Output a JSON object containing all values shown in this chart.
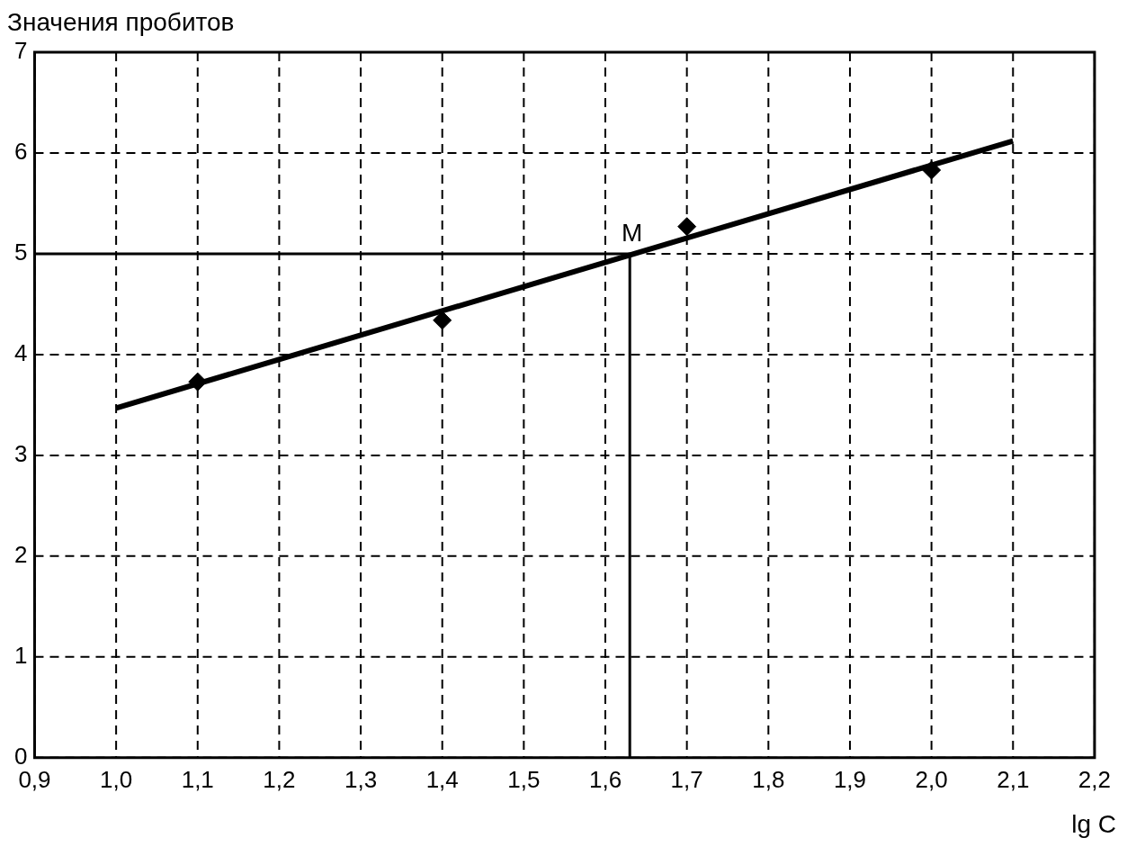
{
  "chart_data": {
    "type": "scatter",
    "xlabel": "lg C",
    "ylabel": "Значения пробитов",
    "xlim": [
      0.9,
      2.2
    ],
    "xticks": [
      {
        "value": 0.9,
        "label": "0,9"
      },
      {
        "value": 1.0,
        "label": "1,0"
      },
      {
        "value": 1.1,
        "label": "1,1"
      },
      {
        "value": 1.2,
        "label": "1,2"
      },
      {
        "value": 1.3,
        "label": "1,3"
      },
      {
        "value": 1.4,
        "label": "1,4"
      },
      {
        "value": 1.5,
        "label": "1,5"
      },
      {
        "value": 1.6,
        "label": "1,6"
      },
      {
        "value": 1.7,
        "label": "1,7"
      },
      {
        "value": 1.8,
        "label": "1,8"
      },
      {
        "value": 1.9,
        "label": "1,9"
      },
      {
        "value": 2.0,
        "label": "2,0"
      },
      {
        "value": 2.1,
        "label": "2,1"
      },
      {
        "value": 2.2,
        "label": "2,2"
      }
    ],
    "ylim": [
      0,
      7
    ],
    "yticks": [
      0,
      1,
      2,
      3,
      4,
      5,
      6,
      7
    ],
    "grid": true,
    "legend": false,
    "series": [
      {
        "marker": "diamond",
        "color": "#000000",
        "x": [
          1.1,
          1.4,
          1.7,
          2.0
        ],
        "values": [
          3.73,
          4.34,
          5.27,
          5.83
        ]
      },
      {
        "type": "line",
        "color": "#000000",
        "x": [
          1.0,
          2.1
        ],
        "values": [
          3.47,
          6.12
        ]
      },
      {
        "type": "line",
        "color": "#000000",
        "x": [
          0.9,
          1.63,
          1.63
        ],
        "values": [
          5,
          5,
          0
        ]
      }
    ],
    "annotations": [
      {
        "text": "M",
        "x": 1.63,
        "y": 5
      }
    ]
  }
}
